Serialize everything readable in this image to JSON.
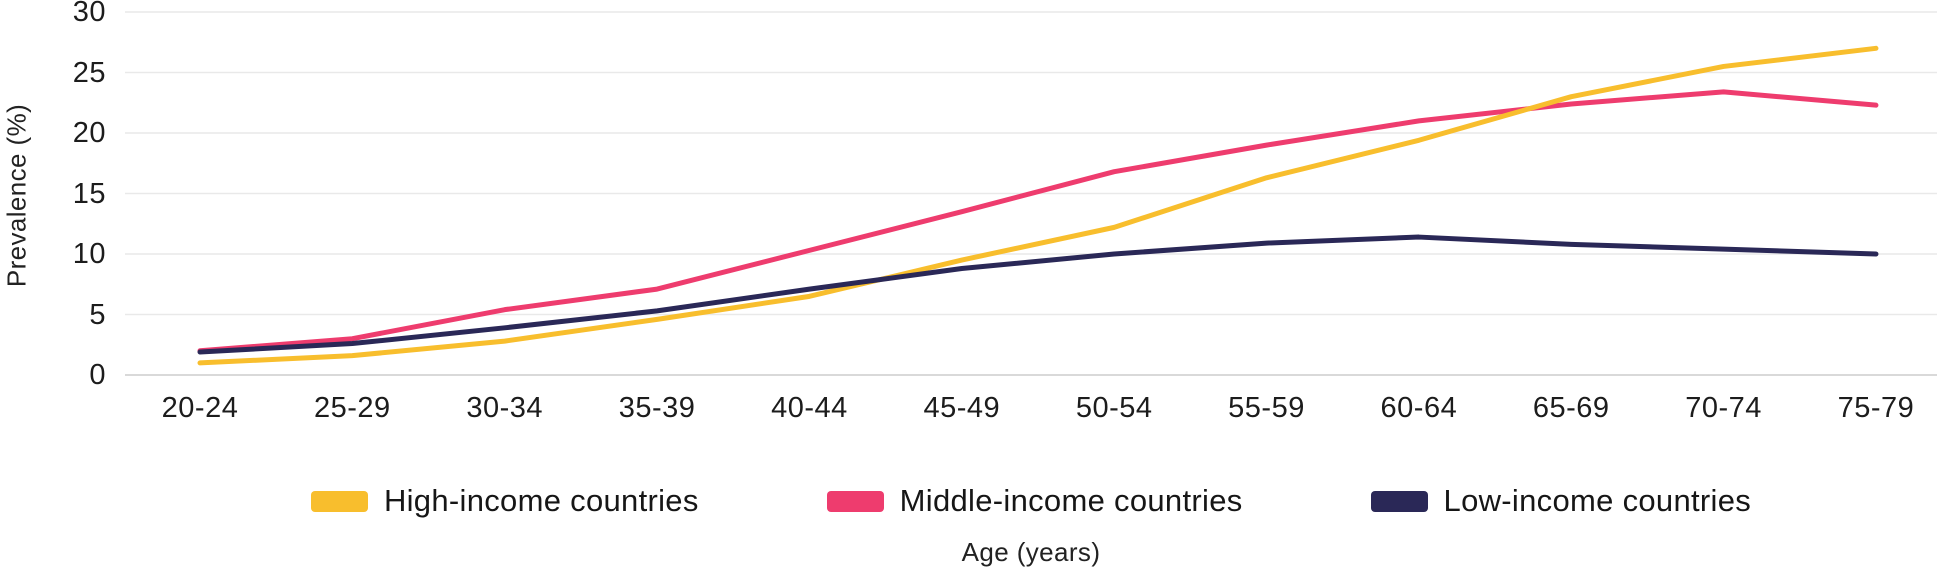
{
  "figure": {
    "y_axis_title": "Prevalence (%)",
    "x_axis_title": "Age (years)"
  },
  "chart_data": {
    "type": "line",
    "title": "",
    "xlabel": "Age (years)",
    "ylabel": "Prevalence (%)",
    "ylim": [
      0,
      30
    ],
    "yticks": [
      0,
      5,
      10,
      15,
      20,
      25,
      30
    ],
    "grid": "horizontal",
    "legend_position": "bottom",
    "categories": [
      "20-24",
      "25-29",
      "30-34",
      "35-39",
      "40-44",
      "45-49",
      "50-54",
      "55-59",
      "60-64",
      "65-69",
      "70-74",
      "75-79"
    ],
    "series": [
      {
        "name": "High-income countries",
        "color": "#F8BE2D",
        "values": [
          1.0,
          1.6,
          2.8,
          4.6,
          6.5,
          9.5,
          12.2,
          16.3,
          19.4,
          23.0,
          25.5,
          27.0
        ]
      },
      {
        "name": "Middle-income countries",
        "color": "#EE3C6E",
        "values": [
          2.0,
          3.0,
          5.4,
          7.1,
          10.3,
          13.5,
          16.8,
          19.0,
          21.0,
          22.4,
          23.4,
          22.3
        ]
      },
      {
        "name": "Low-income countries",
        "color": "#2A2857",
        "values": [
          1.9,
          2.6,
          3.9,
          5.3,
          7.1,
          8.8,
          10.0,
          10.9,
          11.4,
          10.8,
          10.4,
          10.0
        ]
      }
    ],
    "colors": {
      "grid": "#E9E9E9",
      "zero_line": "#D9D9D9",
      "text": "#1F1F1F"
    }
  }
}
